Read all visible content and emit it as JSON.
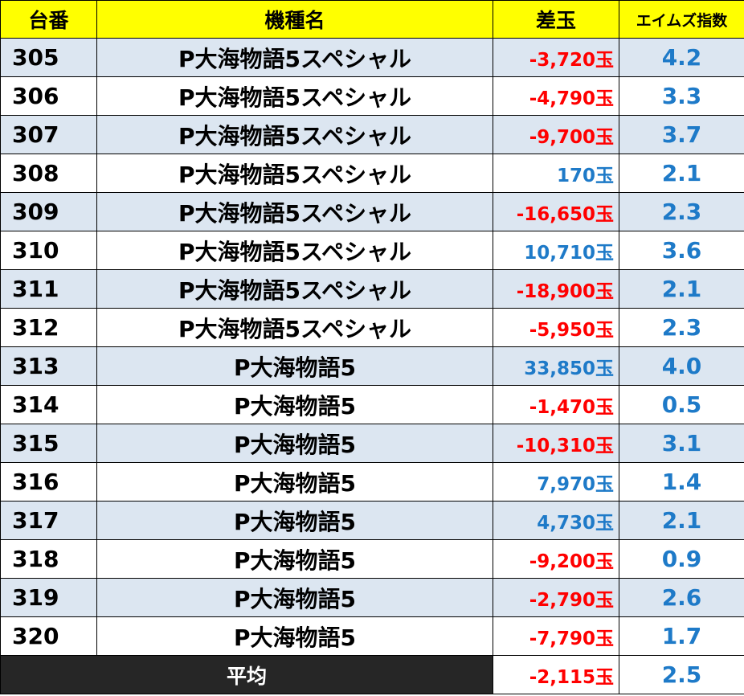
{
  "header": {
    "machine_no": "台番",
    "model_name": "機種名",
    "diff": "差玉",
    "aims_index": "エイムズ指数"
  },
  "colors": {
    "header_bg": "#ffff00",
    "row_alt_bg": "#dce6f1",
    "negative": "#ff0000",
    "positive": "#1e7ac8",
    "footer_label_bg": "#262626"
  },
  "rows": [
    {
      "no": "305",
      "model": "P大海物語5スペシャル",
      "diff": "-3,720玉",
      "sign": "neg",
      "index": "4.2"
    },
    {
      "no": "306",
      "model": "P大海物語5スペシャル",
      "diff": "-4,790玉",
      "sign": "neg",
      "index": "3.3"
    },
    {
      "no": "307",
      "model": "P大海物語5スペシャル",
      "diff": "-9,700玉",
      "sign": "neg",
      "index": "3.7"
    },
    {
      "no": "308",
      "model": "P大海物語5スペシャル",
      "diff": "170玉",
      "sign": "pos",
      "index": "2.1"
    },
    {
      "no": "309",
      "model": "P大海物語5スペシャル",
      "diff": "-16,650玉",
      "sign": "neg",
      "index": "2.3"
    },
    {
      "no": "310",
      "model": "P大海物語5スペシャル",
      "diff": "10,710玉",
      "sign": "pos",
      "index": "3.6"
    },
    {
      "no": "311",
      "model": "P大海物語5スペシャル",
      "diff": "-18,900玉",
      "sign": "neg",
      "index": "2.1"
    },
    {
      "no": "312",
      "model": "P大海物語5スペシャル",
      "diff": "-5,950玉",
      "sign": "neg",
      "index": "2.3"
    },
    {
      "no": "313",
      "model": "P大海物語5",
      "diff": "33,850玉",
      "sign": "pos",
      "index": "4.0"
    },
    {
      "no": "314",
      "model": "P大海物語5",
      "diff": "-1,470玉",
      "sign": "neg",
      "index": "0.5"
    },
    {
      "no": "315",
      "model": "P大海物語5",
      "diff": "-10,310玉",
      "sign": "neg",
      "index": "3.1"
    },
    {
      "no": "316",
      "model": "P大海物語5",
      "diff": "7,970玉",
      "sign": "pos",
      "index": "1.4"
    },
    {
      "no": "317",
      "model": "P大海物語5",
      "diff": "4,730玉",
      "sign": "pos",
      "index": "2.1"
    },
    {
      "no": "318",
      "model": "P大海物語5",
      "diff": "-9,200玉",
      "sign": "neg",
      "index": "0.9"
    },
    {
      "no": "319",
      "model": "P大海物語5",
      "diff": "-2,790玉",
      "sign": "neg",
      "index": "2.6"
    },
    {
      "no": "320",
      "model": "P大海物語5",
      "diff": "-7,790玉",
      "sign": "neg",
      "index": "1.7"
    }
  ],
  "footer": {
    "label": "平均",
    "diff": "-2,115玉",
    "sign": "neg",
    "index": "2.5"
  }
}
